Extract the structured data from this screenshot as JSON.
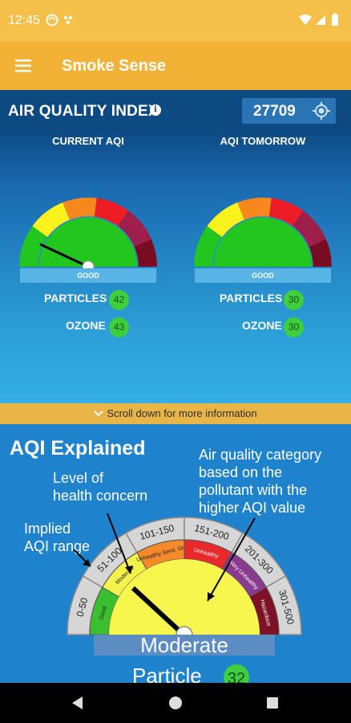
{
  "status_bar": {
    "time": "12:45"
  },
  "app_bar": {
    "title": "Smoke Sense"
  },
  "aqi": {
    "title": "AIR QUALITY INDEX",
    "info_glyph": "i",
    "zip": "27709",
    "current": {
      "label": "CURRENT AQI",
      "category": "GOOD",
      "particles_label": "PARTICLES",
      "particles_value": "42",
      "ozone_label": "OZONE",
      "ozone_value": "43"
    },
    "tomorrow": {
      "label": "AQI TOMORROW",
      "category": "GOOD",
      "particles_label": "PARTICLES",
      "particles_value": "30",
      "ozone_label": "OZONE",
      "ozone_value": "30"
    },
    "gauge_colors": [
      "#22c61e",
      "#fbf21c",
      "#f7891c",
      "#ee1d25",
      "#9e1f4c",
      "#7a0c22"
    ]
  },
  "scroll_hint": "Scroll down for more information",
  "explained": {
    "title": "AQI Explained",
    "health_label_1": "Level of",
    "health_label_2": "health concern",
    "range_label_1": "Implied",
    "range_label_2": "AQI range",
    "category_label_1": "Air quality category",
    "category_label_2": "based on the",
    "category_label_3": "pollutant with the",
    "category_label_4": "higher AQI value",
    "ranges": [
      "0-50",
      "51-100",
      "101-150",
      "151-200",
      "201-300",
      "301-500"
    ],
    "levels": [
      "Good",
      "Moderate",
      "Unhealthy Sens. Grp.",
      "Unhealthy",
      "Very Unhealthy",
      "Hazardous"
    ],
    "category": "Moderate",
    "pollutant_label": "Particle",
    "pollutant_value": "32"
  }
}
